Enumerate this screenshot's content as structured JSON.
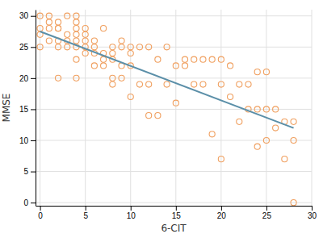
{
  "chart_data": {
    "type": "scatter",
    "xlabel": "6-CIT",
    "ylabel": "MMSE",
    "series": [
      {
        "type": "scatter",
        "marker": "circle",
        "color": "#f0a060",
        "x": [
          0,
          0,
          0,
          0,
          1,
          1,
          1,
          1,
          2,
          2,
          2,
          2,
          2,
          2,
          3,
          3,
          3,
          3,
          4,
          4,
          4,
          4,
          4,
          4,
          4,
          4,
          5,
          5,
          5,
          5,
          5,
          6,
          6,
          6,
          6,
          7,
          7,
          7,
          7,
          8,
          8,
          8,
          8,
          8,
          9,
          9,
          9,
          9,
          10,
          10,
          10,
          10,
          11,
          11,
          12,
          12,
          12,
          13,
          13,
          14,
          14,
          15,
          15,
          16,
          16,
          17,
          17,
          18,
          18,
          19,
          19,
          20,
          20,
          20,
          21,
          21,
          22,
          22,
          23,
          23,
          24,
          24,
          24,
          25,
          25,
          25,
          26,
          26,
          27,
          27,
          28,
          28,
          28
        ],
        "values": [
          25,
          27,
          28,
          30,
          26,
          28,
          29,
          30,
          20,
          25,
          26,
          28,
          28,
          29,
          25,
          26,
          27,
          30,
          20,
          23,
          25,
          26,
          27,
          28,
          29,
          30,
          24,
          25,
          26,
          27,
          28,
          22,
          24,
          25,
          26,
          22,
          23,
          24,
          28,
          20,
          23,
          24,
          25,
          19,
          20,
          22,
          25,
          26,
          17,
          22,
          24,
          25,
          19,
          25,
          14,
          19,
          25,
          14,
          23,
          19,
          25,
          16,
          22,
          22,
          23,
          19,
          23,
          19,
          23,
          11,
          23,
          7,
          19,
          23,
          17,
          22,
          13,
          19,
          15,
          19,
          9,
          15,
          21,
          10,
          15,
          21,
          12,
          15,
          7,
          13,
          0,
          10,
          13
        ]
      },
      {
        "type": "line",
        "line_style": "solid",
        "color": "#5b8fa8",
        "x": [
          0,
          28
        ],
        "values": [
          27.5,
          12.0
        ]
      }
    ],
    "xlim": [
      -0.5,
      30
    ],
    "ylim": [
      -0.5,
      31
    ],
    "xticks": [
      0,
      5,
      10,
      15,
      20,
      25,
      30
    ],
    "yticks": [
      0,
      5,
      10,
      15,
      20,
      25,
      30
    ],
    "grid": true
  }
}
